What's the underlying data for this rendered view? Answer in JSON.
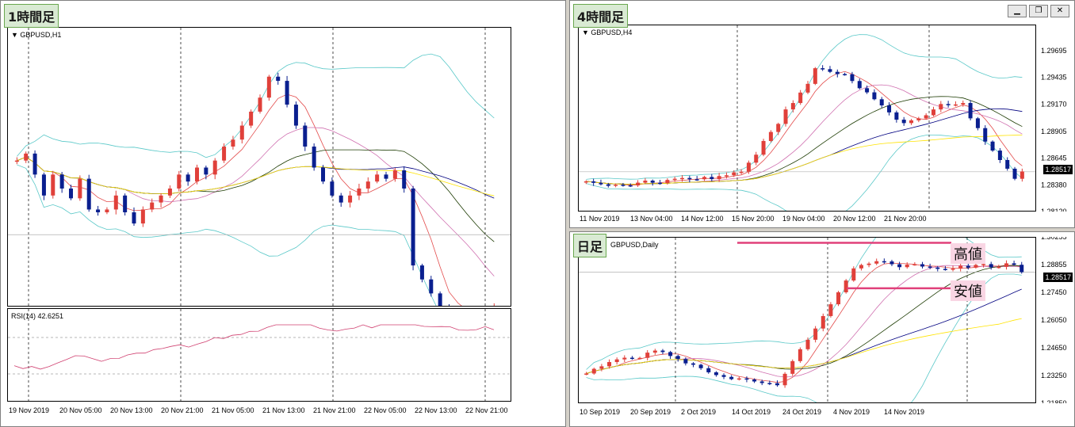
{
  "tags": {
    "h1": "1時間足",
    "h4": "4時間足",
    "daily": "日足"
  },
  "symbols": {
    "h1": "GBPUSD,H1",
    "h4": "GBPUSD,H4",
    "daily": "GBPUSD,Daily"
  },
  "rsi": {
    "label": "RSI(14) 42.6251"
  },
  "notes": {
    "high": "高値",
    "low": "安値"
  },
  "current_price": "1.28517",
  "colors": {
    "bull": "#e0403a",
    "bear": "#0a1f8f",
    "bb": "#59c8c8",
    "ma1": "#e34b4b",
    "ma2": "#1b3a00",
    "ma3": "#d070b0",
    "ma4": "#000080",
    "ma5": "#ffe300",
    "rsi": "#d04070",
    "hl": "#e0407a"
  },
  "window_buttons": [
    "minimize-icon",
    "restore-icon",
    "close-icon"
  ],
  "chart_data": [
    {
      "type": "candlestick",
      "title": "GBPUSD,H1",
      "x_ticks": [
        "19 Nov 2019",
        "20 Nov 05:00",
        "20 Nov 13:00",
        "20 Nov 21:00",
        "21 Nov 05:00",
        "21 Nov 13:00",
        "21 Nov 21:00",
        "22 Nov 05:00",
        "22 Nov 13:00",
        "22 Nov 21:00"
      ],
      "ylim": [
        1.28,
        1.3
      ],
      "close": [
        1.2905,
        1.291,
        1.2895,
        1.288,
        1.2895,
        1.2885,
        1.2878,
        1.2892,
        1.287,
        1.2868,
        1.287,
        1.288,
        1.2868,
        1.286,
        1.287,
        1.2875,
        1.288,
        1.2885,
        1.2895,
        1.289,
        1.29,
        1.2895,
        1.2905,
        1.2915,
        1.292,
        1.293,
        1.294,
        1.295,
        1.2965,
        1.2962,
        1.2945,
        1.293,
        1.2915,
        1.29,
        1.289,
        1.288,
        1.2875,
        1.288,
        1.2885,
        1.289,
        1.2895,
        1.2892,
        1.2898,
        1.2885,
        1.283,
        1.282,
        1.281,
        1.28,
        1.2795,
        1.279,
        1.2795,
        1.279,
        1.2785,
        1.28
      ],
      "series": [
        {
          "name": "RSI(14)",
          "last": 42.6251
        }
      ]
    },
    {
      "type": "candlestick",
      "title": "GBPUSD,H4",
      "x_ticks": [
        "11 Nov 2019",
        "13 Nov 04:00",
        "14 Nov 12:00",
        "15 Nov 20:00",
        "19 Nov 04:00",
        "20 Nov 12:00",
        "21 Nov 20:00"
      ],
      "y_ticks": [
        "1.29695",
        "1.29435",
        "1.29170",
        "1.28905",
        "1.28645",
        "1.28380",
        "1.28120"
      ],
      "ylim": [
        1.2812,
        1.2995
      ]
    },
    {
      "type": "candlestick",
      "title": "GBPUSD,Daily",
      "x_ticks": [
        "10 Sep 2019",
        "20 Sep 2019",
        "2 Oct 2019",
        "14 Oct 2019",
        "24 Oct 2019",
        "4 Nov 2019",
        "14 Nov 2019"
      ],
      "y_ticks": [
        "1.30255",
        "1.28855",
        "1.27450",
        "1.26050",
        "1.24650",
        "1.23250",
        "1.21850"
      ],
      "ylim": [
        1.2185,
        1.3026
      ],
      "annotations": [
        "高値",
        "安値"
      ]
    }
  ]
}
